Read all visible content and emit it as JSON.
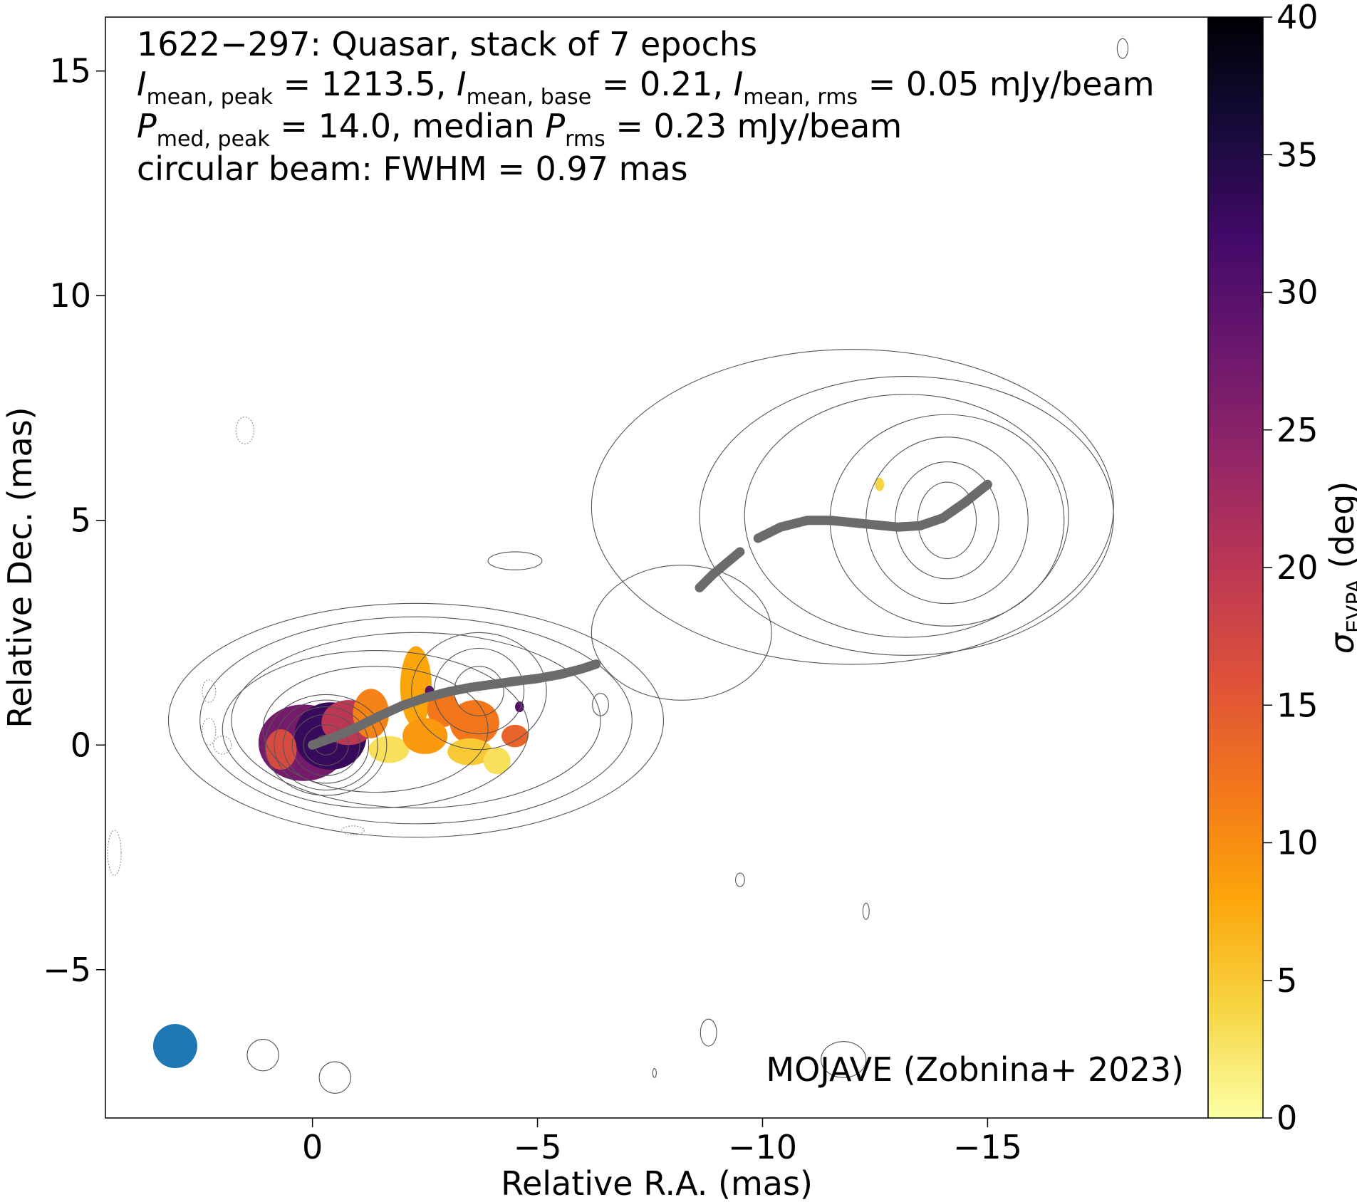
{
  "chart_data": {
    "type": "heatmap",
    "source_name": "1622−297",
    "annotations": {
      "line1": "1622−297: Quasar, stack of 7 epochs",
      "line2": {
        "i_peak_sub": "mean, peak",
        "i_peak_val": " = 1213.5, ",
        "i_base_sub": "mean, base",
        "i_base_val": " = 0.21, ",
        "i_rms_sub": "mean, rms",
        "i_rms_val": " = 0.05 mJy/beam"
      },
      "line3": {
        "p_peak_sub": "med, peak",
        "p_peak_val": " = 14.0, median ",
        "p_rms_sub": "rms",
        "p_rms_val": " = 0.23 mJy/beam"
      },
      "line4": "circular beam: FWHM = 0.97 mas",
      "credit": "MOJAVE (Zobnina+ 2023)"
    },
    "xlabel": "Relative R.A. (mas)",
    "ylabel": "Relative Dec. (mas)",
    "xlim": [
      4.6,
      -19.9
    ],
    "ylim": [
      -8.3,
      16.2
    ],
    "x_ticks": [
      0,
      -5,
      -10,
      -15
    ],
    "x_tick_labels": [
      "0",
      "−5",
      "−10",
      "−15"
    ],
    "y_ticks": [
      -5,
      0,
      5,
      10,
      15
    ],
    "y_tick_labels": [
      "−5",
      "0",
      "5",
      "10",
      "15"
    ],
    "colorbar": {
      "label_symbol": "σ",
      "label_sub": "EVPA",
      "label_unit": " (deg)",
      "range": [
        0,
        40
      ],
      "ticks": [
        0,
        5,
        10,
        15,
        20,
        25,
        30,
        35,
        40
      ],
      "tick_labels": [
        "0",
        "5",
        "10",
        "15",
        "20",
        "25",
        "30",
        "35",
        "40"
      ],
      "colormap": "inferno_r"
    },
    "beam": {
      "x": 3.05,
      "y": -6.7,
      "fwhm_mas": 0.97,
      "color": "#1f77b4"
    },
    "ridgeline": {
      "color": "#6b6b6b",
      "segments": [
        {
          "x": [
            0,
            -0.5,
            -1,
            -1.5,
            -2,
            -2.5,
            -3,
            -3.5,
            -4,
            -4.5,
            -5,
            -5.5,
            -6,
            -6.3
          ],
          "y": [
            0,
            0.18,
            0.4,
            0.65,
            0.88,
            1.05,
            1.18,
            1.28,
            1.35,
            1.42,
            1.48,
            1.57,
            1.7,
            1.8
          ]
        },
        {
          "x": [
            -8.6,
            -8.9,
            -9.2,
            -9.5
          ],
          "y": [
            3.5,
            3.8,
            4.05,
            4.3
          ]
        },
        {
          "x": [
            -9.9,
            -10.4,
            -11,
            -11.5,
            -12,
            -12.5,
            -13,
            -13.5,
            -14,
            -14.5,
            -15
          ],
          "y": [
            4.6,
            4.85,
            5.0,
            5.0,
            4.95,
            4.9,
            4.85,
            4.88,
            5.05,
            5.4,
            5.8
          ]
        }
      ]
    },
    "evpa_regions": [
      {
        "x": 0.2,
        "y": 0.05,
        "rx": 1.0,
        "ry": 0.85,
        "value": 27
      },
      {
        "x": -0.4,
        "y": 0.2,
        "rx": 0.8,
        "ry": 0.75,
        "value": 33
      },
      {
        "x": -0.8,
        "y": 0.5,
        "rx": 0.6,
        "ry": 0.5,
        "value": 20
      },
      {
        "x": 0.7,
        "y": -0.1,
        "rx": 0.35,
        "ry": 0.45,
        "value": 17
      },
      {
        "x": -1.3,
        "y": 0.7,
        "rx": 0.4,
        "ry": 0.55,
        "value": 11
      },
      {
        "x": -1.7,
        "y": -0.1,
        "rx": 0.45,
        "ry": 0.3,
        "value": 3
      },
      {
        "x": -2.3,
        "y": 1.3,
        "rx": 0.35,
        "ry": 0.9,
        "value": 8
      },
      {
        "x": -2.9,
        "y": 0.8,
        "rx": 0.35,
        "ry": 0.4,
        "value": 12
      },
      {
        "x": -2.5,
        "y": 0.2,
        "rx": 0.5,
        "ry": 0.4,
        "value": 9
      },
      {
        "x": -3.6,
        "y": 0.5,
        "rx": 0.55,
        "ry": 0.5,
        "value": 12
      },
      {
        "x": -3.5,
        "y": -0.15,
        "rx": 0.5,
        "ry": 0.3,
        "value": 5
      },
      {
        "x": -4.1,
        "y": -0.35,
        "rx": 0.3,
        "ry": 0.3,
        "value": 3
      },
      {
        "x": -4.5,
        "y": 0.2,
        "rx": 0.3,
        "ry": 0.25,
        "value": 14
      },
      {
        "x": -4.6,
        "y": 0.85,
        "rx": 0.1,
        "ry": 0.12,
        "value": 30
      },
      {
        "x": -2.6,
        "y": 1.2,
        "rx": 0.1,
        "ry": 0.12,
        "value": 30
      },
      {
        "x": -12.6,
        "y": 5.8,
        "rx": 0.1,
        "ry": 0.15,
        "value": 4
      }
    ],
    "contours": [
      {
        "cx": -0.3,
        "cy": 0.0,
        "levels": [
          {
            "rx": 0.25,
            "ry": 0.22
          },
          {
            "rx": 0.5,
            "ry": 0.45
          },
          {
            "rx": 0.75,
            "ry": 0.68
          },
          {
            "rx": 0.95,
            "ry": 0.85
          },
          {
            "rx": 1.15,
            "ry": 1.0
          },
          {
            "rx": 1.35,
            "ry": 1.12
          }
        ]
      },
      {
        "cx": -1.4,
        "cy": 0.35,
        "levels": [
          {
            "rx": 2.5,
            "ry": 1.4
          },
          {
            "rx": 3.4,
            "ry": 1.75
          }
        ]
      },
      {
        "cx": -2.3,
        "cy": 0.55,
        "levels": [
          {
            "rx": 4.1,
            "ry": 1.95
          },
          {
            "rx": 4.8,
            "ry": 2.3
          },
          {
            "rx": 5.5,
            "ry": 2.6
          }
        ]
      },
      {
        "cx": -3.7,
        "cy": 1.2,
        "levels": [
          {
            "rx": 0.55,
            "ry": 0.55
          },
          {
            "rx": 1.0,
            "ry": 0.95
          },
          {
            "rx": 1.5,
            "ry": 1.3
          }
        ]
      },
      {
        "cx": -14.1,
        "cy": 5.0,
        "levels": [
          {
            "rx": 0.65,
            "ry": 0.85
          },
          {
            "rx": 1.15,
            "ry": 1.3
          },
          {
            "rx": 1.8,
            "ry": 1.85
          },
          {
            "rx": 2.6,
            "ry": 2.35
          }
        ]
      },
      {
        "cx": -13.2,
        "cy": 5.1,
        "levels": [
          {
            "rx": 3.6,
            "ry": 2.7
          },
          {
            "rx": 4.6,
            "ry": 3.1
          }
        ]
      },
      {
        "cx": -12.0,
        "cy": 5.3,
        "levels": [
          {
            "rx": 5.8,
            "ry": 3.5
          }
        ]
      },
      {
        "cx": -8.2,
        "cy": 2.5,
        "levels": [
          {
            "rx": 2.0,
            "ry": 1.5
          }
        ]
      }
    ],
    "small_contours": [
      {
        "x": -18.0,
        "y": 15.5,
        "rx": 0.12,
        "ry": 0.22
      },
      {
        "x": -9.5,
        "y": -3.0,
        "rx": 0.1,
        "ry": 0.15
      },
      {
        "x": -12.3,
        "y": -3.7,
        "rx": 0.07,
        "ry": 0.18
      },
      {
        "x": -8.8,
        "y": -6.4,
        "rx": 0.18,
        "ry": 0.3
      },
      {
        "x": 1.1,
        "y": -6.9,
        "rx": 0.35,
        "ry": 0.35
      },
      {
        "x": -0.5,
        "y": -7.4,
        "rx": 0.35,
        "ry": 0.35
      },
      {
        "x": -11.8,
        "y": -7.0,
        "rx": 0.5,
        "ry": 0.4
      },
      {
        "x": -7.6,
        "y": -7.3,
        "rx": 0.04,
        "ry": 0.1
      },
      {
        "x": -6.4,
        "y": 0.9,
        "rx": 0.18,
        "ry": 0.25
      },
      {
        "x": -4.5,
        "y": 4.1,
        "rx": 0.6,
        "ry": 0.2
      }
    ],
    "dotted_contours": [
      {
        "x": 1.5,
        "y": 7.0,
        "rx": 0.2,
        "ry": 0.3
      },
      {
        "x": 2.3,
        "y": 1.2,
        "rx": 0.15,
        "ry": 0.25
      },
      {
        "x": 2.3,
        "y": 0.3,
        "rx": 0.15,
        "ry": 0.3
      },
      {
        "x": 2.0,
        "y": 0.0,
        "rx": 0.2,
        "ry": 0.2
      },
      {
        "x": -0.9,
        "y": -1.9,
        "rx": 0.25,
        "ry": 0.1
      },
      {
        "x": 4.4,
        "y": -2.4,
        "rx": 0.15,
        "ry": 0.5
      }
    ]
  }
}
